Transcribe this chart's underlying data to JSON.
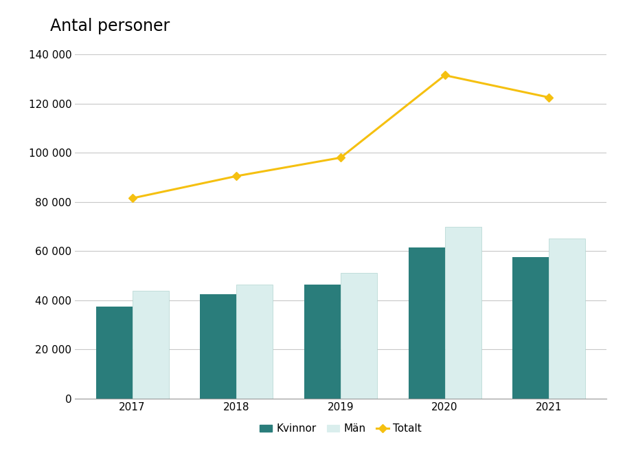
{
  "years": [
    2017,
    2018,
    2019,
    2020,
    2021
  ],
  "kvinnor": [
    37500,
    42500,
    46500,
    61500,
    57500
  ],
  "man": [
    44000,
    46500,
    51000,
    70000,
    65000
  ],
  "totalt": [
    81500,
    90500,
    98000,
    131500,
    122500
  ],
  "bar_color_kvinnor": "#2a7d7b",
  "bar_color_man": "#daeeed",
  "line_color_totalt": "#f5c010",
  "title": "Antal personer",
  "ylim": [
    0,
    140000
  ],
  "yticks": [
    0,
    20000,
    40000,
    60000,
    80000,
    100000,
    120000,
    140000
  ],
  "ytick_labels": [
    "0",
    "20 000",
    "40 000",
    "60 000",
    "80 000",
    "100 000",
    "120 000",
    "140 000"
  ],
  "legend_labels": [
    "Kvinnor",
    "Män",
    "Totalt"
  ],
  "background_color": "#ffffff",
  "grid_color": "#c8c8c8",
  "bar_width": 0.35,
  "figsize": [
    9.1,
    6.59
  ],
  "dpi": 100,
  "title_fontsize": 17,
  "tick_fontsize": 11,
  "legend_fontsize": 11
}
